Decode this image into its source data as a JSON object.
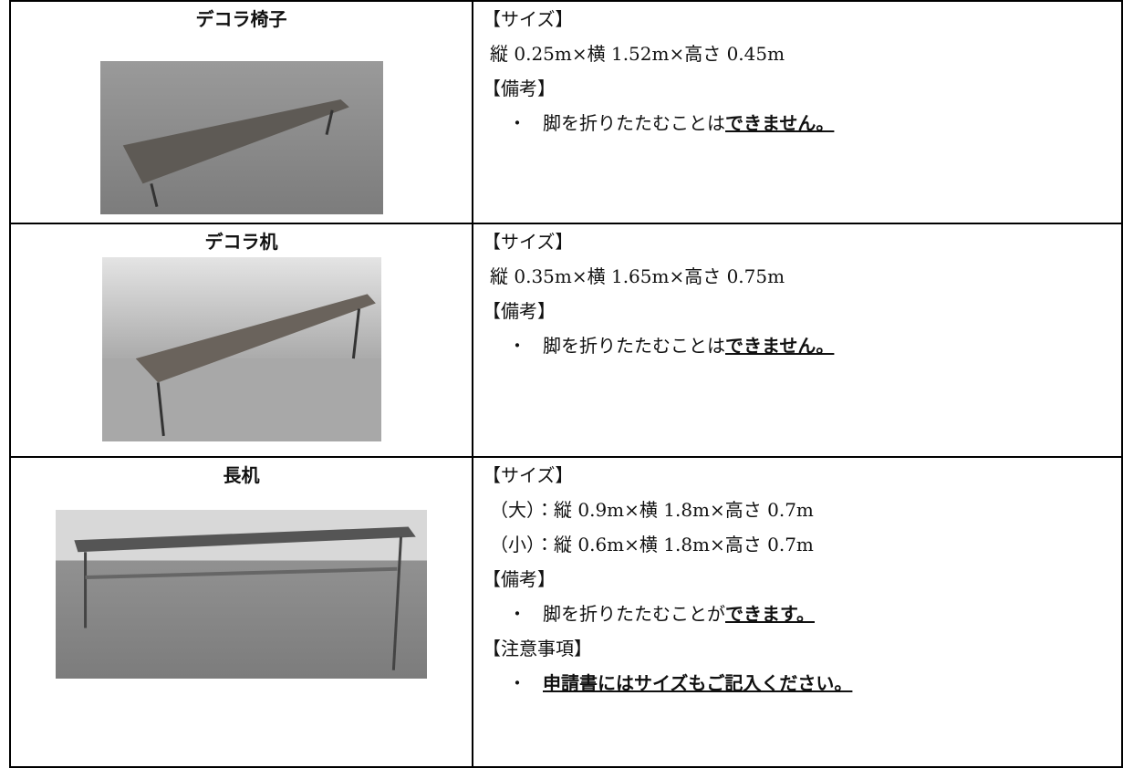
{
  "rows": [
    {
      "name": "デコラ椅子",
      "sections": [
        {
          "heading": "【サイズ】",
          "lines": [
            "縦 0.25m×横 1.52m×高さ 0.45m"
          ]
        },
        {
          "heading": "【備考】",
          "lines": [
            {
              "bullet": "・",
              "runs": [
                {
                  "text": "脚を折りたたむことは"
                },
                {
                  "text": "できません。",
                  "emphasis": true
                }
              ]
            }
          ]
        }
      ]
    },
    {
      "name": "デコラ机",
      "sections": [
        {
          "heading": "【サイズ】",
          "lines": [
            "縦 0.35m×横 1.65m×高さ 0.75m"
          ]
        },
        {
          "heading": "【備考】",
          "lines": [
            {
              "bullet": "・",
              "runs": [
                {
                  "text": "脚を折りたたむことは"
                },
                {
                  "text": "できません。",
                  "emphasis": true
                }
              ]
            }
          ]
        }
      ]
    },
    {
      "name": "長机",
      "sections": [
        {
          "heading": "【サイズ】",
          "lines": [
            "（大）：縦 0.9m×横 1.8m×高さ 0.7m",
            "（小）：縦 0.6m×横 1.8m×高さ 0.7m"
          ]
        },
        {
          "heading": "【備考】",
          "lines": [
            {
              "bullet": "・",
              "runs": [
                {
                  "text": "脚を折りたたむことが"
                },
                {
                  "text": "できます。",
                  "emphasis": true
                }
              ]
            }
          ]
        },
        {
          "heading": "【注意事項】",
          "lines": [
            {
              "bullet": "・",
              "runs": [
                {
                  "text": "申請書にはサイズもご記入ください。",
                  "emphasis": true
                }
              ]
            }
          ]
        }
      ]
    }
  ]
}
